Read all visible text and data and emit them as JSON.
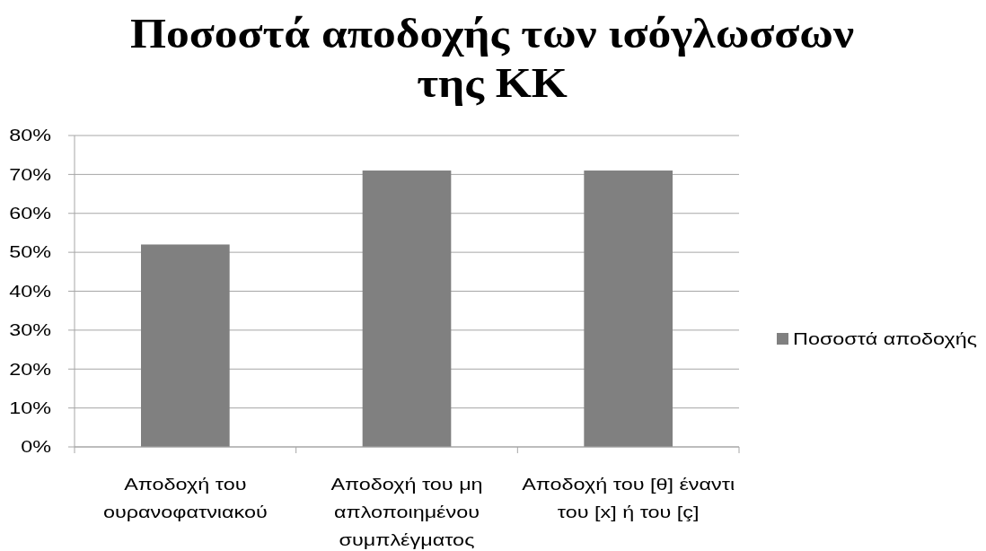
{
  "chart_data": {
    "type": "bar",
    "title": "Ποσοστά αποδοχής των ισόγλωσσων της ΚΚ",
    "categories": [
      "Αποδοχή του ουρανοφατνιακού",
      "Αποδοχή του μη απλοποιημένου συμπλέγματος",
      "Αποδοχή του [θ] έναντι του [x] ή του [ç]"
    ],
    "series": [
      {
        "name": "Ποσοστά αποδοχής",
        "color": "#808080",
        "values": [
          52,
          71,
          71
        ]
      }
    ],
    "ylim": [
      0,
      80
    ],
    "yticks": [
      {
        "value": 0,
        "label": "0%"
      },
      {
        "value": 10,
        "label": "10%"
      },
      {
        "value": 20,
        "label": "20%"
      },
      {
        "value": 30,
        "label": "30%"
      },
      {
        "value": 40,
        "label": "40%"
      },
      {
        "value": 50,
        "label": "50%"
      },
      {
        "value": 60,
        "label": "60%"
      },
      {
        "value": 70,
        "label": "70%"
      },
      {
        "value": 80,
        "label": "80%"
      }
    ],
    "grid": "y",
    "legend": "right"
  }
}
